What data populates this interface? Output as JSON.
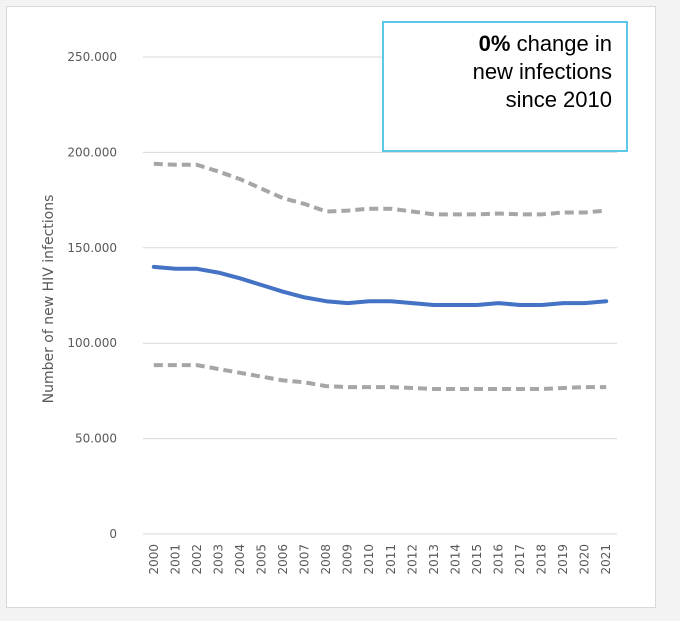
{
  "callout": {
    "bold": "0%",
    "line1_rest": " change in",
    "line2": "new infections",
    "line3": "since 2010",
    "border_color": "#5bc8ea"
  },
  "chart_data": {
    "type": "line",
    "title": "",
    "xlabel": "",
    "ylabel": "Number of new HIV infections",
    "x": [
      "2000",
      "2001",
      "2002",
      "2003",
      "2004",
      "2005",
      "2006",
      "2007",
      "2008",
      "2009",
      "2010",
      "2011",
      "2012",
      "2013",
      "2014",
      "2015",
      "2016",
      "2017",
      "2018",
      "2019",
      "2020",
      "2021"
    ],
    "ylim": [
      0,
      250000
    ],
    "yticks": [
      0,
      50000,
      100000,
      150000,
      200000,
      250000
    ],
    "ytick_labels": [
      "0",
      "50.000",
      "100.000",
      "150.000",
      "200.000",
      "250.000"
    ],
    "grid": true,
    "series": [
      {
        "style": "dashed",
        "color": "#a6a6a6",
        "values": [
          194000,
          193500,
          193500,
          190000,
          186000,
          181000,
          176000,
          173000,
          169000,
          169500,
          170500,
          170500,
          169000,
          167500,
          167500,
          167500,
          168000,
          167500,
          167500,
          168500,
          168500,
          169500
        ]
      },
      {
        "style": "solid",
        "color": "#4472c4",
        "values": [
          140000,
          139000,
          139000,
          137000,
          134000,
          130500,
          127000,
          124000,
          122000,
          121000,
          122000,
          122000,
          121000,
          120000,
          120000,
          120000,
          121000,
          120000,
          120000,
          121000,
          121000,
          122000
        ]
      },
      {
        "style": "dashed",
        "color": "#a6a6a6",
        "values": [
          88500,
          88500,
          88500,
          86500,
          84500,
          82500,
          80500,
          79500,
          77500,
          77000,
          77000,
          77000,
          76500,
          76000,
          76000,
          76000,
          76000,
          76000,
          76000,
          76500,
          77000,
          77000
        ]
      }
    ]
  }
}
